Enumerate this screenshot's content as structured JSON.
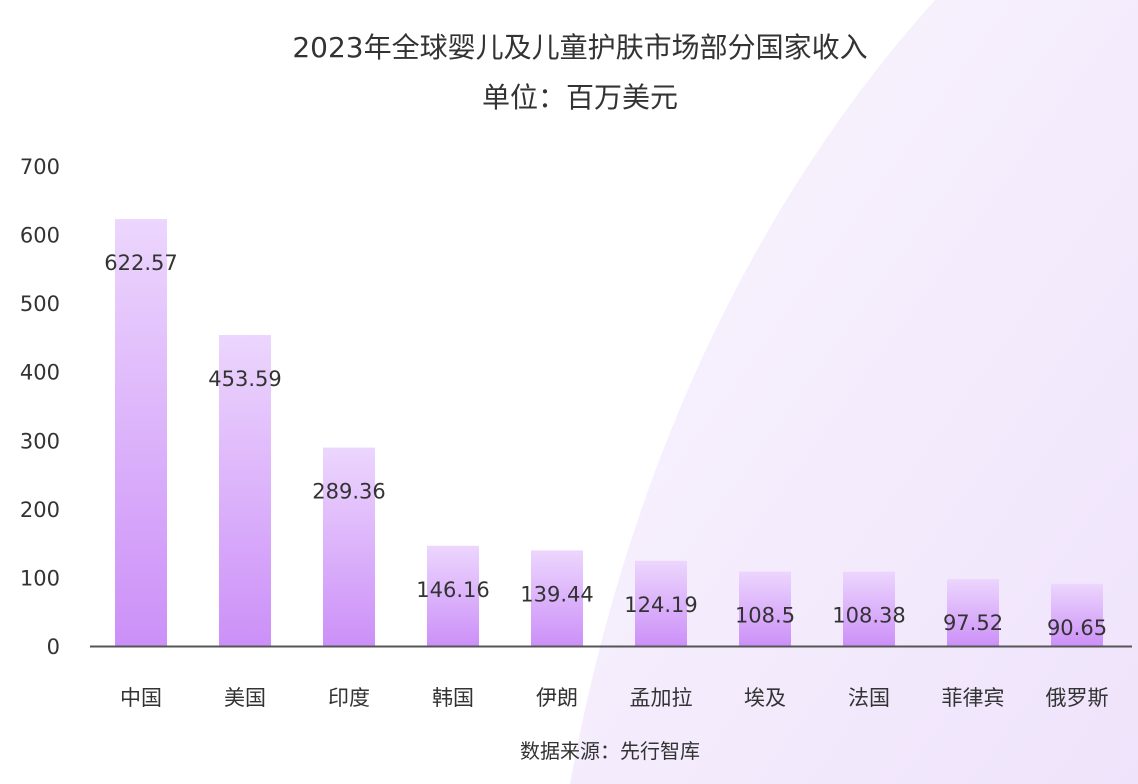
{
  "chart_data": {
    "type": "bar",
    "title": "2023年全球婴儿及儿童护肤市场部分国家收入",
    "subtitle": "单位：百万美元",
    "categories": [
      "中国",
      "美国",
      "印度",
      "韩国",
      "伊朗",
      "孟加拉",
      "埃及",
      "法国",
      "菲律宾",
      "俄罗斯"
    ],
    "values": [
      622.57,
      453.59,
      289.36,
      146.16,
      139.44,
      124.19,
      108.5,
      108.38,
      97.52,
      90.65
    ],
    "value_labels": [
      "622.57",
      "453.59",
      "289.36",
      "146.16",
      "139.44",
      "124.19",
      "108.5",
      "108.38",
      "97.52",
      "90.65"
    ],
    "ylim": [
      0,
      700
    ],
    "yticks": [
      0,
      100,
      200,
      300,
      400,
      500,
      600,
      700
    ],
    "grid": false,
    "legend": "none",
    "colors": {
      "bar_top": "#ecd6fd",
      "bar_bottom": "#cc90f8",
      "axis": "#555555",
      "background_shape": "#f4ecfd"
    }
  },
  "source": "数据来源：先行智库"
}
